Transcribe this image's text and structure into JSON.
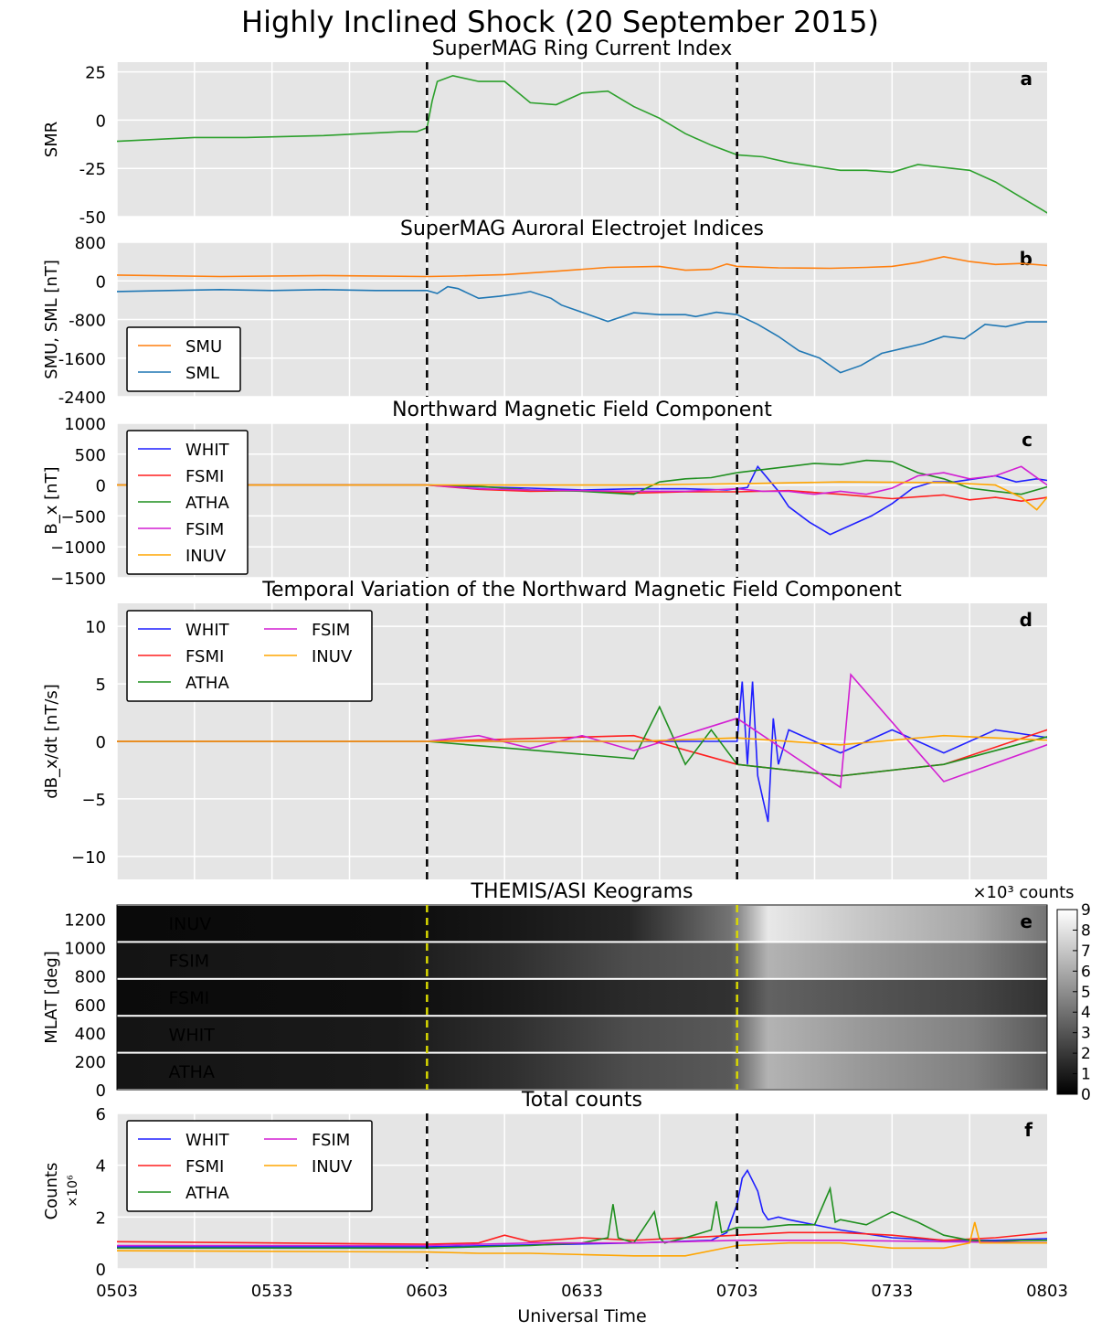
{
  "figure_title": "Highly Inclined Shock (20 September 2015)",
  "xlabel": "Universal Time",
  "x_ticks": [
    "0503",
    "0533",
    "0603",
    "0633",
    "0703",
    "0733",
    "0803"
  ],
  "colors": {
    "WHIT": "#1f1fff",
    "FSMI": "#ff1f1f",
    "ATHA": "#1f8f1f",
    "FSIM": "#d21fd2",
    "INUV": "#ffa500",
    "SMU": "#ff7f0e",
    "SML": "#1f77b4",
    "SMR": "#2ca02c",
    "panel_bg": "#e5e5e5",
    "keo_label": "#c8c800"
  },
  "chart_data": [
    {
      "panel": "a",
      "type": "line",
      "title": "SuperMAG Ring Current Index",
      "ylabel": "SMR",
      "ylim": [
        -50,
        30
      ],
      "yticks": [
        "25",
        "0",
        "-25",
        "-50"
      ],
      "grid": true,
      "series": [
        {
          "name": "SMR",
          "x": [
            0,
            15,
            25,
            40,
            55,
            58,
            60,
            61,
            62,
            65,
            70,
            75,
            80,
            85,
            90,
            95,
            100,
            105,
            110,
            115,
            120,
            125,
            130,
            140,
            145,
            150,
            155,
            165,
            170,
            175,
            180,
            183,
            185
          ],
          "values": [
            -11,
            -9,
            -9,
            -8,
            -6,
            -6,
            -4,
            10,
            20,
            23,
            20,
            20,
            9,
            8,
            14,
            15,
            7,
            1,
            -7,
            -13,
            -18,
            -19,
            -22,
            -26,
            -26,
            -27,
            -23,
            -26,
            -32,
            -40,
            -48,
            -49,
            -50
          ]
        }
      ]
    },
    {
      "panel": "b",
      "type": "line",
      "title": "SuperMAG Auroral Electrojet Indices",
      "ylabel": "SMU, SML [nT]",
      "ylim": [
        -2400,
        800
      ],
      "yticks": [
        "800",
        "0",
        "-800",
        "-1600",
        "-2400"
      ],
      "legend": "lower-left",
      "grid": true,
      "series": [
        {
          "name": "SMU",
          "x": [
            0,
            20,
            40,
            60,
            65,
            75,
            85,
            95,
            105,
            110,
            115,
            118,
            120,
            128,
            138,
            145,
            150,
            155,
            160,
            165,
            170,
            175,
            180,
            185
          ],
          "values": [
            120,
            90,
            110,
            90,
            100,
            130,
            200,
            280,
            300,
            220,
            240,
            350,
            300,
            270,
            260,
            280,
            300,
            380,
            500,
            400,
            340,
            360,
            320,
            220
          ]
        },
        {
          "name": "SML",
          "x": [
            0,
            10,
            20,
            30,
            40,
            50,
            55,
            60,
            62,
            64,
            66,
            70,
            74,
            78,
            80,
            84,
            86,
            90,
            95,
            100,
            105,
            110,
            112,
            116,
            120,
            124,
            128,
            132,
            136,
            140,
            144,
            148,
            152,
            156,
            160,
            164,
            168,
            172,
            176,
            180,
            185
          ],
          "values": [
            -220,
            -200,
            -180,
            -200,
            -180,
            -200,
            -200,
            -200,
            -260,
            -120,
            -160,
            -360,
            -320,
            -260,
            -220,
            -360,
            -500,
            -650,
            -840,
            -660,
            -700,
            -700,
            -740,
            -650,
            -700,
            -900,
            -1150,
            -1450,
            -1600,
            -1900,
            -1750,
            -1500,
            -1400,
            -1300,
            -1150,
            -1200,
            -900,
            -950,
            -850,
            -850,
            -900
          ]
        }
      ]
    },
    {
      "panel": "c",
      "type": "line",
      "title": "Northward Magnetic Field Component",
      "ylabel": "B_x [nT]",
      "ylim": [
        -1500,
        1000
      ],
      "yticks": [
        "1000",
        "500",
        "0",
        "−500",
        "−1000",
        "−1500"
      ],
      "legend": "upper-left",
      "grid": true,
      "series": [
        {
          "name": "WHIT",
          "x": [
            0,
            60,
            70,
            80,
            90,
            100,
            110,
            118,
            122,
            124,
            126,
            128,
            130,
            134,
            138,
            142,
            146,
            150,
            154,
            158,
            162,
            166,
            170,
            174,
            178,
            182,
            185
          ],
          "values": [
            0,
            0,
            -30,
            -50,
            -80,
            -60,
            -60,
            -80,
            -40,
            300,
            100,
            -100,
            -350,
            -600,
            -800,
            -650,
            -500,
            -300,
            -50,
            50,
            50,
            100,
            150,
            50,
            100,
            50,
            -100
          ]
        },
        {
          "name": "FSMI",
          "x": [
            0,
            60,
            70,
            80,
            90,
            100,
            110,
            120,
            130,
            140,
            150,
            160,
            165,
            170,
            175,
            180,
            185
          ],
          "values": [
            0,
            0,
            -70,
            -100,
            -90,
            -130,
            -110,
            -110,
            -90,
            -150,
            -220,
            -160,
            -240,
            -200,
            -260,
            -200,
            0
          ]
        },
        {
          "name": "ATHA",
          "x": [
            0,
            60,
            70,
            80,
            90,
            100,
            105,
            110,
            115,
            120,
            130,
            135,
            140,
            145,
            150,
            155,
            160,
            165,
            170,
            175,
            180,
            185
          ],
          "values": [
            0,
            0,
            -20,
            -80,
            -100,
            -150,
            50,
            100,
            120,
            200,
            300,
            350,
            330,
            400,
            380,
            200,
            100,
            -50,
            -100,
            -150,
            -30,
            80
          ]
        },
        {
          "name": "FSIM",
          "x": [
            0,
            60,
            70,
            80,
            90,
            100,
            110,
            120,
            125,
            130,
            135,
            140,
            145,
            150,
            155,
            160,
            165,
            170,
            175,
            180,
            185
          ],
          "values": [
            0,
            0,
            -60,
            -80,
            -90,
            -100,
            -100,
            -60,
            -100,
            -100,
            -150,
            -100,
            -150,
            -50,
            150,
            200,
            100,
            150,
            300,
            0,
            -200
          ]
        },
        {
          "name": "INUV",
          "x": [
            0,
            60,
            80,
            100,
            120,
            140,
            160,
            170,
            175,
            178,
            180,
            185
          ],
          "values": [
            0,
            0,
            0,
            0,
            20,
            50,
            40,
            0,
            -200,
            -400,
            -200,
            -200
          ]
        }
      ]
    },
    {
      "panel": "d",
      "type": "line",
      "title": "Temporal Variation of the Northward Magnetic Field Component",
      "ylabel": "dB_x/dt [nT/s]",
      "ylim": [
        -12,
        12
      ],
      "yticks": [
        "10",
        "5",
        "0",
        "−5",
        "−10"
      ],
      "legend": "upper-left",
      "grid": true,
      "series": [
        {
          "name": "WHIT",
          "x": [
            0,
            60,
            100,
            120,
            121,
            122,
            123,
            124,
            125,
            126,
            127,
            128,
            130,
            140,
            150,
            160,
            170,
            185
          ],
          "values": [
            0,
            0,
            0,
            0,
            5.2,
            -2,
            5.2,
            -3,
            -5,
            -7,
            2,
            -2,
            1,
            -1,
            1,
            -1,
            1,
            0
          ]
        },
        {
          "name": "FSMI",
          "x": [
            0,
            60,
            100,
            120,
            140,
            160,
            180,
            185
          ],
          "values": [
            0,
            0,
            0.5,
            -2,
            -3,
            -2,
            1,
            1.5
          ]
        },
        {
          "name": "ATHA",
          "x": [
            0,
            60,
            100,
            105,
            110,
            115,
            120,
            140,
            160,
            185
          ],
          "values": [
            0,
            0,
            -1.5,
            3,
            -2,
            1,
            -2,
            -3,
            -2,
            1
          ]
        },
        {
          "name": "FSIM",
          "x": [
            0,
            60,
            70,
            80,
            90,
            100,
            120,
            140,
            142,
            160,
            185
          ],
          "values": [
            0,
            0,
            0.5,
            -0.6,
            0.5,
            -0.8,
            2,
            -4,
            5.8,
            -3.5,
            0.5
          ]
        },
        {
          "name": "INUV",
          "x": [
            0,
            60,
            100,
            120,
            140,
            160,
            185
          ],
          "values": [
            0,
            0,
            0,
            0.3,
            -0.3,
            0.5,
            0
          ]
        }
      ]
    },
    {
      "panel": "e",
      "type": "heatmap",
      "title": "THEMIS/ASI Keograms",
      "ylabel": "MLAT [deg]",
      "ylim": [
        0,
        1300
      ],
      "yticks": [
        "1200",
        "1000",
        "800",
        "600",
        "400",
        "200",
        "0"
      ],
      "colorbar": {
        "label_multiplier": "×10³",
        "label": "counts",
        "min": 0,
        "max": 9,
        "ticks": [
          "9",
          "8",
          "7",
          "6",
          "5",
          "4",
          "3",
          "2",
          "1",
          "0"
        ]
      },
      "stations": [
        "INUV",
        "FSIM",
        "FSMI",
        "WHIT",
        "ATHA"
      ]
    },
    {
      "panel": "f",
      "type": "line",
      "title": "Total counts",
      "ylabel": "Counts",
      "ylabel_multiplier": "×10⁶",
      "ylim": [
        0,
        6
      ],
      "yticks": [
        "6",
        "4",
        "2",
        "0"
      ],
      "legend": "upper-left",
      "grid": true,
      "series": [
        {
          "name": "WHIT",
          "x": [
            0,
            60,
            100,
            115,
            118,
            120,
            121,
            122,
            124,
            125,
            126,
            128,
            130,
            140,
            150,
            160,
            170,
            185
          ],
          "values": [
            0.85,
            0.85,
            1.0,
            1.1,
            1.4,
            2.5,
            3.5,
            3.8,
            3.0,
            2.2,
            1.9,
            2.0,
            1.9,
            1.5,
            1.2,
            1.1,
            1.1,
            1.2
          ]
        },
        {
          "name": "FSMI",
          "x": [
            0,
            30,
            60,
            70,
            75,
            80,
            90,
            100,
            110,
            120,
            130,
            140,
            150,
            160,
            170,
            180,
            185
          ],
          "values": [
            1.05,
            1.0,
            0.95,
            1.0,
            1.3,
            1.05,
            1.2,
            1.1,
            1.2,
            1.3,
            1.4,
            1.4,
            1.3,
            1.1,
            1.2,
            1.4,
            1.6
          ]
        },
        {
          "name": "ATHA",
          "x": [
            0,
            60,
            80,
            90,
            95,
            96,
            97,
            100,
            104,
            105,
            106,
            110,
            115,
            116,
            117,
            120,
            125,
            130,
            135,
            138,
            139,
            140,
            145,
            150,
            155,
            160,
            165,
            170,
            175,
            185
          ],
          "values": [
            0.8,
            0.8,
            0.9,
            1.0,
            1.2,
            2.5,
            1.2,
            1.0,
            2.2,
            1.2,
            1.0,
            1.2,
            1.5,
            2.6,
            1.4,
            1.6,
            1.6,
            1.7,
            1.7,
            3.1,
            1.8,
            1.9,
            1.7,
            2.2,
            1.8,
            1.3,
            1.1,
            1.05,
            1.1,
            1.1
          ]
        },
        {
          "name": "FSIM",
          "x": [
            0,
            60,
            80,
            100,
            120,
            140,
            160,
            185
          ],
          "values": [
            0.9,
            0.9,
            1.0,
            1.0,
            1.1,
            1.1,
            1.05,
            1.0
          ]
        },
        {
          "name": "INUV",
          "x": [
            0,
            60,
            70,
            80,
            90,
            100,
            110,
            120,
            130,
            140,
            150,
            160,
            165,
            166,
            167,
            170,
            185
          ],
          "values": [
            0.7,
            0.65,
            0.6,
            0.6,
            0.55,
            0.5,
            0.5,
            0.9,
            1.0,
            1.0,
            0.8,
            0.8,
            1.0,
            1.8,
            1.0,
            1.0,
            1.0
          ]
        }
      ]
    }
  ],
  "event_lines_minutes": [
    60,
    120
  ],
  "panel_letters": [
    "a",
    "b",
    "c",
    "d",
    "e",
    "f"
  ]
}
